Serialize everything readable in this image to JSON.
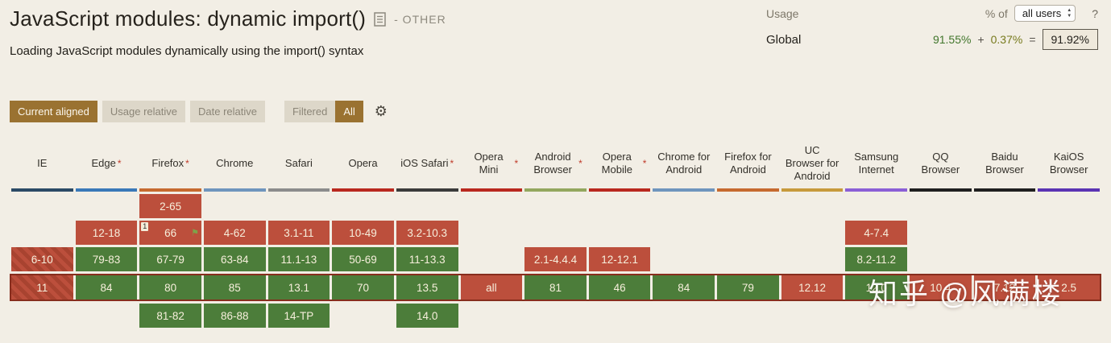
{
  "header": {
    "title": "JavaScript modules: dynamic import()",
    "category": "- OTHER",
    "description": "Loading JavaScript modules dynamically using the import() syntax"
  },
  "usage": {
    "label": "Usage",
    "percent_of": "% of",
    "select_value": "all users",
    "help": "?",
    "region": "Global",
    "full_support_pct": "91.55%",
    "plus": "+",
    "partial_support_pct": "0.37%",
    "equals": "=",
    "total_pct": "91.92%"
  },
  "toolbar": {
    "current_aligned": "Current aligned",
    "usage_relative": "Usage relative",
    "date_relative": "Date relative",
    "filtered": "Filtered",
    "all": "All"
  },
  "icons": {
    "gear": "⚙",
    "flag": "⚑",
    "stepper_up": "▲",
    "stepper_down": "▼"
  },
  "colors": {
    "supported": "#4c7d3a",
    "unsupported": "#bc4f3c",
    "unsupported_stripe": "#a84330",
    "current_row_border": "#872d1d",
    "active_button": "#9a7231",
    "usage_full": "#41762c",
    "usage_partial": "#777a1d"
  },
  "table": {
    "columns": [
      {
        "name": "IE",
        "asterisk": false,
        "bar": "#2b4a66"
      },
      {
        "name": "Edge",
        "asterisk": true,
        "bar": "#3a79b8"
      },
      {
        "name": "Firefox",
        "asterisk": true,
        "bar": "#c66a2f"
      },
      {
        "name": "Chrome",
        "asterisk": false,
        "bar": "#6f95bd"
      },
      {
        "name": "Safari",
        "asterisk": false,
        "bar": "#8c8c8c"
      },
      {
        "name": "Opera",
        "asterisk": false,
        "bar": "#b9281e"
      },
      {
        "name": "iOS Safari",
        "asterisk": true,
        "bar": "#3b3b3b"
      },
      {
        "name": "Opera Mini",
        "asterisk": true,
        "bar": "#b9281e"
      },
      {
        "name": "Android Browser",
        "asterisk": true,
        "bar": "#93a75e"
      },
      {
        "name": "Opera Mobile",
        "asterisk": true,
        "bar": "#b9281e"
      },
      {
        "name": "Chrome for Android",
        "asterisk": false,
        "bar": "#6f95bd"
      },
      {
        "name": "Firefox for Android",
        "asterisk": false,
        "bar": "#c66a2f"
      },
      {
        "name": "UC Browser for Android",
        "asterisk": false,
        "bar": "#c79a3c"
      },
      {
        "name": "Samsung Internet",
        "asterisk": false,
        "bar": "#8b5fd6"
      },
      {
        "name": "QQ Browser",
        "asterisk": false,
        "bar": "#1f1f1f"
      },
      {
        "name": "Baidu Browser",
        "asterisk": false,
        "bar": "#1f1f1f"
      },
      {
        "name": "KaiOS Browser",
        "asterisk": false,
        "bar": "#5b34b3"
      }
    ],
    "rows": [
      {
        "current": false,
        "cells": [
          null,
          null,
          {
            "text": "2-65",
            "status": "red"
          },
          null,
          null,
          null,
          null,
          null,
          null,
          null,
          null,
          null,
          null,
          null,
          null,
          null,
          null
        ]
      },
      {
        "current": false,
        "cells": [
          null,
          {
            "text": "12-18",
            "status": "red"
          },
          {
            "text": "66",
            "status": "red",
            "note": "1",
            "flag": true
          },
          {
            "text": "4-62",
            "status": "red"
          },
          {
            "text": "3.1-11",
            "status": "red"
          },
          {
            "text": "10-49",
            "status": "red"
          },
          {
            "text": "3.2-10.3",
            "status": "red"
          },
          null,
          null,
          null,
          null,
          null,
          null,
          {
            "text": "4-7.4",
            "status": "red"
          },
          null,
          null,
          null
        ]
      },
      {
        "current": false,
        "cells": [
          {
            "text": "6-10",
            "status": "striped"
          },
          {
            "text": "79-83",
            "status": "green"
          },
          {
            "text": "67-79",
            "status": "green"
          },
          {
            "text": "63-84",
            "status": "green"
          },
          {
            "text": "11.1-13",
            "status": "green"
          },
          {
            "text": "50-69",
            "status": "green"
          },
          {
            "text": "11-13.3",
            "status": "green"
          },
          null,
          {
            "text": "2.1-4.4.4",
            "status": "red"
          },
          {
            "text": "12-12.1",
            "status": "red"
          },
          null,
          null,
          null,
          {
            "text": "8.2-11.2",
            "status": "green"
          },
          null,
          null,
          null
        ]
      },
      {
        "current": true,
        "cells": [
          {
            "text": "11",
            "status": "striped"
          },
          {
            "text": "84",
            "status": "green"
          },
          {
            "text": "80",
            "status": "green"
          },
          {
            "text": "85",
            "status": "green"
          },
          {
            "text": "13.1",
            "status": "green"
          },
          {
            "text": "70",
            "status": "green"
          },
          {
            "text": "13.5",
            "status": "green"
          },
          {
            "text": "all",
            "status": "red"
          },
          {
            "text": "81",
            "status": "green"
          },
          {
            "text": "46",
            "status": "green"
          },
          {
            "text": "84",
            "status": "green"
          },
          {
            "text": "79",
            "status": "green"
          },
          {
            "text": "12.12",
            "status": "red"
          },
          {
            "text": "12.0",
            "status": "green"
          },
          {
            "text": "10.4",
            "status": "red"
          },
          {
            "text": "7.12",
            "status": "red"
          },
          {
            "text": "2.5",
            "status": "red"
          }
        ]
      },
      {
        "current": false,
        "cells": [
          null,
          null,
          {
            "text": "81-82",
            "status": "green"
          },
          {
            "text": "86-88",
            "status": "green"
          },
          {
            "text": "14-TP",
            "status": "green"
          },
          null,
          {
            "text": "14.0",
            "status": "green"
          },
          null,
          null,
          null,
          null,
          null,
          null,
          null,
          null,
          null,
          null
        ]
      }
    ]
  },
  "watermark": "知乎 @风满楼"
}
